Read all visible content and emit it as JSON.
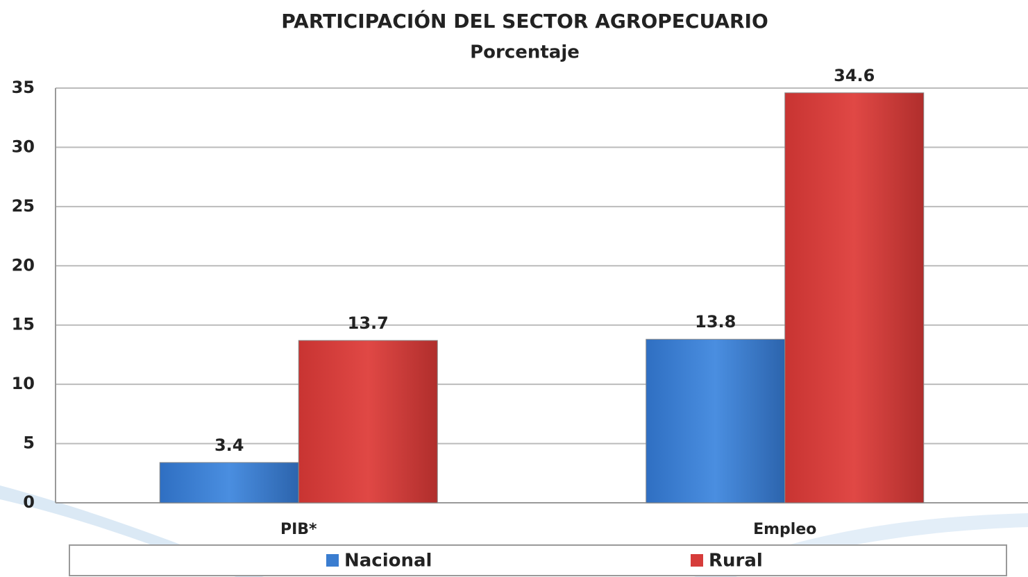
{
  "chart_data": {
    "type": "bar",
    "title": "PARTICIPACIÓN DEL SECTOR AGROPECUARIO",
    "subtitle": "Porcentaje",
    "categories": [
      "PIB*",
      "Empleo"
    ],
    "series": [
      {
        "name": "Nacional",
        "color": "#3a7dd0",
        "values": [
          3.4,
          13.8
        ]
      },
      {
        "name": "Rural",
        "color": "#d63c3a",
        "values": [
          13.7,
          34.6
        ]
      }
    ],
    "ylim": [
      0,
      35
    ],
    "yticks": [
      0,
      5,
      10,
      15,
      20,
      25,
      30,
      35
    ],
    "grid": true,
    "legend": "bottom"
  }
}
